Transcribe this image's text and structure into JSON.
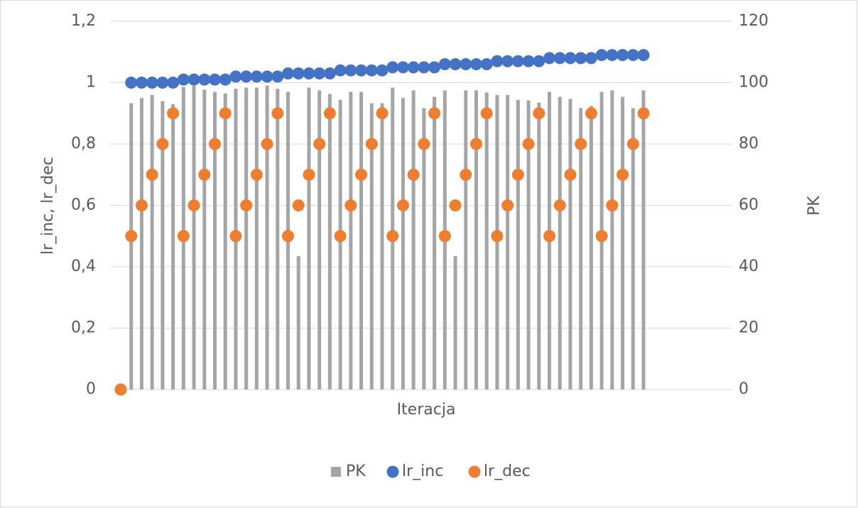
{
  "chart_data": {
    "type": "combo",
    "x_label": "Iteracja",
    "y_label": "lr_inc, lr_dec",
    "y2_label": "PK",
    "categories": [
      null,
      null,
      null,
      null,
      null,
      null,
      null,
      null,
      null,
      null,
      null,
      null,
      null,
      null,
      null,
      null,
      null,
      null,
      null,
      null,
      null,
      null,
      null,
      null,
      null,
      null,
      null,
      null,
      null,
      null,
      null,
      null,
      null,
      null,
      null,
      null,
      null,
      null,
      null,
      null,
      null,
      null,
      null,
      null,
      null,
      null,
      null,
      null,
      null,
      null,
      null,
      null,
      null,
      null,
      null,
      null,
      null,
      null,
      null
    ],
    "ylim": [
      0,
      1.2
    ],
    "yticks": [
      0,
      {
        "value": 0.2,
        "label": "0,2"
      },
      {
        "value": 0.4,
        "label": "0,4"
      },
      {
        "value": 0.6,
        "label": "0,6"
      },
      {
        "value": 0.8,
        "label": "0,8"
      },
      1,
      {
        "value": 1.2,
        "label": "1,2"
      }
    ],
    "y2lim": [
      0,
      120
    ],
    "y2ticks": [
      0,
      20,
      40,
      60,
      80,
      100,
      120
    ],
    "grid": true,
    "legend": "bottom",
    "series": [
      {
        "name": "PK",
        "type": "bar",
        "axis": "y2",
        "color": "#a5a5a5",
        "values": [
          null,
          93.3,
          95,
          96,
          94,
          93,
          98.6,
          99,
          97.7,
          97,
          96.5,
          98,
          98.4,
          98.4,
          99,
          98,
          97,
          43.5,
          98.4,
          97.5,
          96.3,
          94.4,
          97,
          97,
          93.3,
          93.3,
          98.4,
          95,
          97.5,
          91.7,
          95.4,
          97.5,
          43.5,
          97.5,
          97.5,
          96.8,
          96,
          96,
          94.4,
          94.2,
          93.5,
          97,
          95.4,
          94.7,
          91.7,
          92.4,
          97,
          97.5,
          95.4,
          91.7,
          97.5,
          null,
          null,
          null,
          null,
          null,
          null,
          null,
          null
        ]
      },
      {
        "name": "lr_inc",
        "type": "scatter",
        "color": "#4472c4",
        "values": [
          0,
          1,
          1,
          1,
          1,
          1,
          1.01,
          1.01,
          1.01,
          1.01,
          1.01,
          1.02,
          1.02,
          1.02,
          1.02,
          1.02,
          1.03,
          1.03,
          1.03,
          1.03,
          1.03,
          1.04,
          1.04,
          1.04,
          1.04,
          1.04,
          1.05,
          1.05,
          1.05,
          1.05,
          1.05,
          1.06,
          1.06,
          1.06,
          1.06,
          1.06,
          1.07,
          1.07,
          1.07,
          1.07,
          1.07,
          1.08,
          1.08,
          1.08,
          1.08,
          1.08,
          1.09,
          1.09,
          1.09,
          1.09,
          1.09,
          null,
          null,
          null,
          null,
          null,
          null,
          null,
          null
        ]
      },
      {
        "name": "lr_dec",
        "type": "scatter",
        "color": "#ed7d31",
        "values": [
          0,
          0.5,
          0.6,
          0.7,
          0.8,
          0.9,
          0.5,
          0.6,
          0.7,
          0.8,
          0.9,
          0.5,
          0.6,
          0.7,
          0.8,
          0.9,
          0.5,
          0.6,
          0.7,
          0.8,
          0.9,
          0.5,
          0.6,
          0.7,
          0.8,
          0.9,
          0.5,
          0.6,
          0.7,
          0.8,
          0.9,
          0.5,
          0.6,
          0.7,
          0.8,
          0.9,
          0.5,
          0.6,
          0.7,
          0.8,
          0.9,
          0.5,
          0.6,
          0.7,
          0.8,
          0.9,
          0.5,
          0.6,
          0.7,
          0.8,
          0.9,
          null,
          null,
          null,
          null,
          null,
          null,
          null,
          null
        ]
      }
    ]
  }
}
